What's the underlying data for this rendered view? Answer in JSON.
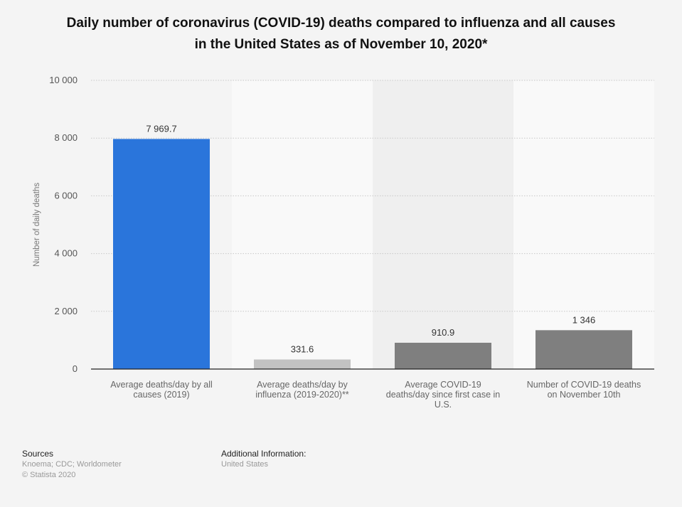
{
  "chart_data": {
    "type": "bar",
    "title": "Daily number of coronavirus (COVID-19) deaths compared to influenza and all causes in the United States as of November 10, 2020*",
    "title_lines": [
      "Daily number of coronavirus (COVID-19) deaths compared to influenza and all causes",
      "in the United States as of November 10, 2020*"
    ],
    "ylabel": "Number of daily deaths",
    "xlabel": "",
    "ylim": [
      0,
      10000
    ],
    "yticks": [
      0,
      2000,
      4000,
      6000,
      8000,
      10000
    ],
    "ytick_labels": [
      "0",
      "2 000",
      "4 000",
      "6 000",
      "8 000",
      "10 000"
    ],
    "grid": true,
    "categories": [
      [
        "Average deaths/day by all",
        "causes (2019)"
      ],
      [
        "Average deaths/day by",
        "influenza (2019-2020)**"
      ],
      [
        "Average COVID-19",
        "deaths/day since first case in",
        "U.S."
      ],
      [
        "Number of COVID-19 deaths",
        "on November 10th"
      ]
    ],
    "values": [
      7969.7,
      331.6,
      910.9,
      1346
    ],
    "data_labels": [
      "7 969.7",
      "331.6",
      "910.9",
      "1 346"
    ],
    "bar_colors": [
      "#2a75db",
      "#c2c2c2",
      "#7f7f7f",
      "#7f7f7f"
    ]
  },
  "footer": {
    "sources_heading": "Sources",
    "sources": "Knoema; CDC; Worldometer",
    "copyright": "© Statista 2020",
    "additional_heading": "Additional Information:",
    "additional": "United States"
  }
}
